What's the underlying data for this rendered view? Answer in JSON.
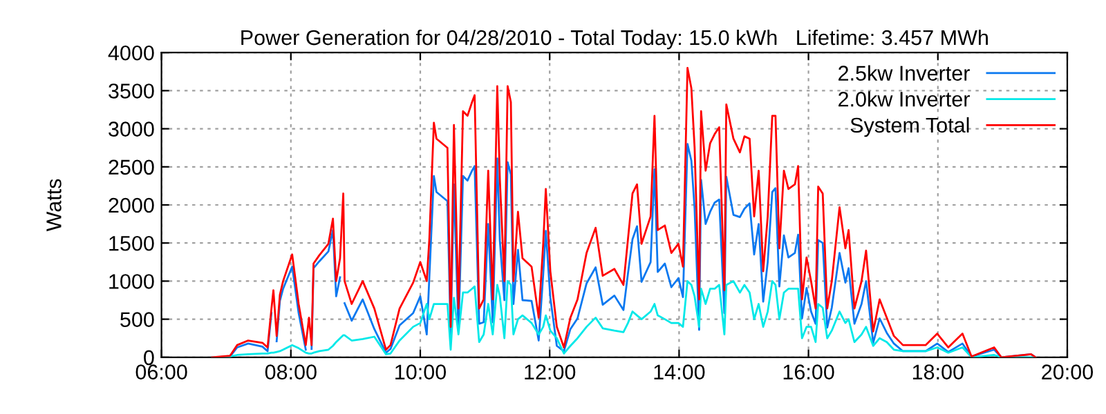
{
  "chart_data": {
    "type": "line",
    "title": "Power Generation for 04/28/2010 - Total Today: 15.0 kWh   Lifetime: 3.457 MWh",
    "ylabel": "Watts",
    "x": [
      6.78,
      7.06,
      7.17,
      7.34,
      7.56,
      7.64,
      7.7,
      7.73,
      7.78,
      7.83,
      7.88,
      8.02,
      8.12,
      8.23,
      8.28,
      8.32,
      8.35,
      8.44,
      8.58,
      8.65,
      8.7,
      8.76,
      8.81,
      8.83,
      8.94,
      9.11,
      9.29,
      9.47,
      9.54,
      9.68,
      9.89,
      10.0,
      10.1,
      10.14,
      10.21,
      10.25,
      10.42,
      10.47,
      10.52,
      10.59,
      10.66,
      10.73,
      10.8,
      10.84,
      10.91,
      10.98,
      11.05,
      11.12,
      11.19,
      11.23,
      11.3,
      11.35,
      11.4,
      11.44,
      11.51,
      11.58,
      11.72,
      11.83,
      11.9,
      11.94,
      12.01,
      12.11,
      12.22,
      12.32,
      12.43,
      12.57,
      12.71,
      12.82,
      13.0,
      13.14,
      13.21,
      13.28,
      13.35,
      13.42,
      13.56,
      13.62,
      13.67,
      13.78,
      13.88,
      13.99,
      14.06,
      14.13,
      14.19,
      14.24,
      14.31,
      14.34,
      14.41,
      14.48,
      14.55,
      14.62,
      14.7,
      14.73,
      14.84,
      14.94,
      15.01,
      15.09,
      15.16,
      15.23,
      15.3,
      15.37,
      15.44,
      15.49,
      15.55,
      15.62,
      15.69,
      15.79,
      15.84,
      15.9,
      15.97,
      16.04,
      16.11,
      16.15,
      16.22,
      16.29,
      16.36,
      16.48,
      16.57,
      16.62,
      16.71,
      16.82,
      16.89,
      17.0,
      17.1,
      17.21,
      17.32,
      17.46,
      17.81,
      17.99,
      18.16,
      18.38,
      18.52,
      18.87,
      18.98,
      19.44,
      19.51
    ],
    "series": [
      {
        "name": "2.5kw Inverter",
        "color": "#0a78f0",
        "values": [
          0,
          10,
          130,
          180,
          140,
          80,
          580,
          null,
          210,
          740,
          900,
          1190,
          580,
          100,
          null,
          110,
          1170,
          1260,
          1390,
          1670,
          800,
          1050,
          null,
          710,
          480,
          760,
          370,
          60,
          110,
          420,
          580,
          800,
          300,
          1050,
          2380,
          2170,
          2050,
          300,
          2270,
          340,
          2380,
          2320,
          2450,
          2510,
          440,
          460,
          1750,
          460,
          2610,
          1530,
          750,
          2560,
          2400,
          700,
          1410,
          750,
          740,
          220,
          1090,
          1660,
          780,
          150,
          80,
          370,
          510,
          970,
          1180,
          690,
          810,
          620,
          1100,
          1550,
          1720,
          990,
          1250,
          2470,
          1120,
          1230,
          920,
          1040,
          790,
          2800,
          2580,
          1950,
          360,
          2330,
          1750,
          1910,
          2030,
          2070,
          580,
          2370,
          1870,
          1840,
          1950,
          2020,
          1350,
          1750,
          730,
          1250,
          2170,
          2220,
          930,
          1600,
          1310,
          1370,
          1610,
          510,
          910,
          600,
          440,
          1540,
          1500,
          390,
          650,
          1370,
          980,
          1170,
          440,
          700,
          1000,
          190,
          510,
          320,
          180,
          80,
          80,
          180,
          70,
          180,
          10,
          100,
          0,
          40,
          0
        ]
      },
      {
        "name": "2.0kw Inverter",
        "color": "#00e8e8",
        "values": [
          0,
          10,
          30,
          40,
          50,
          50,
          60,
          60,
          70,
          80,
          100,
          160,
          120,
          60,
          50,
          50,
          60,
          80,
          100,
          150,
          200,
          250,
          290,
          290,
          220,
          240,
          270,
          40,
          50,
          220,
          400,
          450,
          700,
          500,
          700,
          700,
          700,
          100,
          780,
          300,
          850,
          850,
          900,
          930,
          200,
          300,
          700,
          300,
          950,
          800,
          250,
          1000,
          950,
          300,
          500,
          550,
          450,
          300,
          400,
          550,
          350,
          250,
          50,
          150,
          250,
          400,
          520,
          380,
          350,
          330,
          450,
          600,
          550,
          500,
          600,
          700,
          550,
          500,
          450,
          450,
          400,
          1000,
          950,
          800,
          400,
          900,
          700,
          900,
          900,
          950,
          300,
          950,
          1000,
          850,
          950,
          850,
          500,
          700,
          400,
          600,
          1000,
          950,
          500,
          850,
          900,
          900,
          900,
          250,
          400,
          400,
          200,
          700,
          650,
          250,
          350,
          600,
          450,
          500,
          200,
          300,
          400,
          150,
          250,
          200,
          100,
          80,
          80,
          130,
          60,
          130,
          0,
          30,
          0,
          0,
          0
        ]
      },
      {
        "name": "System Total",
        "color": "#ff0000",
        "values": [
          0,
          20,
          160,
          220,
          190,
          130,
          640,
          880,
          280,
          820,
          1000,
          1350,
          700,
          160,
          520,
          160,
          1230,
          1340,
          1490,
          1820,
          1000,
          1300,
          2150,
          1000,
          700,
          1000,
          640,
          100,
          160,
          640,
          980,
          1250,
          1000,
          1550,
          3080,
          2870,
          2750,
          400,
          3050,
          640,
          3230,
          3170,
          3350,
          3440,
          640,
          760,
          2450,
          760,
          3560,
          2330,
          1000,
          3560,
          3350,
          1000,
          1910,
          1300,
          1190,
          520,
          1490,
          2210,
          1130,
          400,
          130,
          520,
          760,
          1370,
          1700,
          1070,
          1160,
          950,
          1550,
          2150,
          2270,
          1490,
          1850,
          3170,
          1670,
          1730,
          1370,
          1490,
          1190,
          3800,
          3530,
          2750,
          760,
          3230,
          2450,
          2810,
          2930,
          3020,
          880,
          3320,
          2870,
          2690,
          2900,
          2870,
          1850,
          2450,
          1130,
          1850,
          3170,
          3170,
          1430,
          2450,
          2210,
          2270,
          2510,
          760,
          1310,
          1000,
          640,
          2240,
          2150,
          640,
          1000,
          1970,
          1430,
          1670,
          640,
          1000,
          1400,
          340,
          760,
          520,
          280,
          160,
          160,
          310,
          130,
          310,
          10,
          130,
          0,
          40,
          0
        ]
      }
    ],
    "xlim": [
      6,
      20
    ],
    "xticks": [
      {
        "value": 6,
        "label": "06:00"
      },
      {
        "value": 8,
        "label": "08:00"
      },
      {
        "value": 10,
        "label": "10:00"
      },
      {
        "value": 12,
        "label": "12:00"
      },
      {
        "value": 14,
        "label": "14:00"
      },
      {
        "value": 16,
        "label": "16:00"
      },
      {
        "value": 18,
        "label": "18:00"
      },
      {
        "value": 20,
        "label": "20:00"
      }
    ],
    "ylim": [
      0,
      4000
    ],
    "yticks": [
      0,
      500,
      1000,
      1500,
      2000,
      2500,
      3000,
      3500,
      4000
    ],
    "grid": true,
    "legend": "top right",
    "marker": "none",
    "line_style": "solid"
  }
}
